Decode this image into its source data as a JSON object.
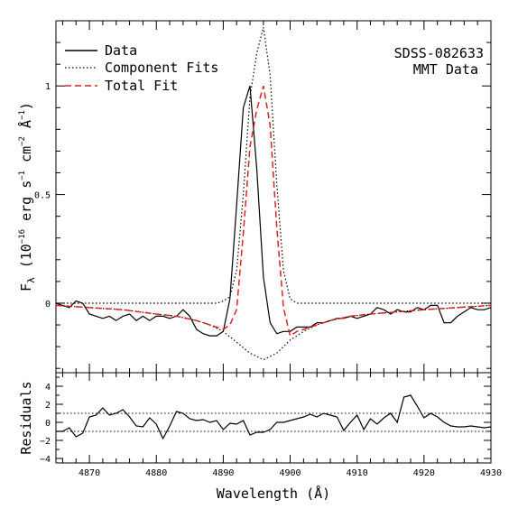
{
  "chart_data": [
    {
      "type": "line",
      "panel": "main",
      "ylabel": "F_λ (10^-16 erg s^-1 cm^-2 Å^-1)",
      "ylabel_parts": {
        "main": "F",
        "sub": "λ",
        "unit_open": "(10",
        "exp1": "−16",
        "mid1": " erg s",
        "exp2": "−1",
        "mid2": " cm",
        "exp3": "−2",
        "mid3": " Å",
        "exp4": "−1",
        "unit_close": ")"
      },
      "xlim": [
        4865,
        4930
      ],
      "ylim": [
        -0.32,
        1.3
      ],
      "yticks_major": [
        0,
        0.5,
        1
      ],
      "ytick_labels": [
        "0",
        "0.5",
        "1"
      ],
      "annotation": [
        "SDSS-082633",
        "MMT Data"
      ],
      "legend": [
        {
          "label": "Data",
          "style": "solid",
          "color": "#000000"
        },
        {
          "label": "Component Fits",
          "style": "dotted",
          "color": "#000000"
        },
        {
          "label": "Total Fit",
          "style": "dashed",
          "color": "#e02020"
        }
      ],
      "series": [
        {
          "name": "Data",
          "style": "solid",
          "color": "#000000",
          "x": [
            4865,
            4866,
            4867,
            4868,
            4869,
            4870,
            4871,
            4872,
            4873,
            4874,
            4875,
            4876,
            4877,
            4878,
            4879,
            4880,
            4881,
            4882,
            4883,
            4884,
            4885,
            4886,
            4887,
            4888,
            4889,
            4890,
            4891,
            4892,
            4893,
            4894,
            4895,
            4896,
            4897,
            4898,
            4899,
            4900,
            4901,
            4902,
            4903,
            4904,
            4905,
            4906,
            4907,
            4908,
            4909,
            4910,
            4911,
            4912,
            4913,
            4914,
            4915,
            4916,
            4917,
            4918,
            4919,
            4920,
            4921,
            4922,
            4923,
            4924,
            4925,
            4926,
            4927,
            4928,
            4929,
            4930
          ],
          "values": [
            0.0,
            -0.01,
            -0.02,
            0.01,
            0.0,
            -0.05,
            -0.06,
            -0.07,
            -0.06,
            -0.08,
            -0.06,
            -0.05,
            -0.08,
            -0.06,
            -0.08,
            -0.06,
            -0.06,
            -0.07,
            -0.06,
            -0.03,
            -0.06,
            -0.12,
            -0.14,
            -0.15,
            -0.15,
            -0.13,
            0.02,
            0.45,
            0.9,
            1.0,
            0.62,
            0.12,
            -0.09,
            -0.14,
            -0.13,
            -0.13,
            -0.11,
            -0.11,
            -0.11,
            -0.09,
            -0.09,
            -0.08,
            -0.07,
            -0.07,
            -0.06,
            -0.07,
            -0.06,
            -0.05,
            -0.02,
            -0.03,
            -0.05,
            -0.03,
            -0.04,
            -0.04,
            -0.02,
            -0.03,
            -0.01,
            -0.01,
            -0.09,
            -0.09,
            -0.06,
            -0.04,
            -0.02,
            -0.03,
            -0.03,
            -0.02
          ]
        },
        {
          "name": "Component Fits (narrow)",
          "style": "dotted",
          "color": "#000000",
          "x": [
            4865,
            4889,
            4890,
            4891,
            4892,
            4893,
            4894,
            4895,
            4896,
            4897,
            4898,
            4899,
            4900,
            4901,
            4930
          ],
          "values": [
            0.0,
            0.0,
            0.01,
            0.03,
            0.15,
            0.5,
            0.95,
            1.15,
            1.27,
            1.05,
            0.55,
            0.15,
            0.02,
            0.0,
            0.0
          ]
        },
        {
          "name": "Component Fits (broad)",
          "style": "dotted",
          "color": "#000000",
          "x": [
            4865,
            4870,
            4875,
            4880,
            4883,
            4886,
            4888,
            4890,
            4892,
            4894,
            4896,
            4898,
            4900,
            4902,
            4904,
            4906,
            4909,
            4912,
            4916,
            4920,
            4925,
            4930
          ],
          "values": [
            -0.01,
            -0.02,
            -0.03,
            -0.05,
            -0.06,
            -0.08,
            -0.1,
            -0.13,
            -0.18,
            -0.23,
            -0.26,
            -0.23,
            -0.17,
            -0.13,
            -0.1,
            -0.08,
            -0.06,
            -0.05,
            -0.04,
            -0.03,
            -0.02,
            -0.01
          ]
        },
        {
          "name": "Total Fit",
          "style": "dashed",
          "color": "#e02020",
          "x": [
            4865,
            4870,
            4875,
            4880,
            4883,
            4886,
            4888,
            4890,
            4891,
            4892,
            4893,
            4894,
            4895,
            4896,
            4897,
            4898,
            4899,
            4900,
            4901,
            4902,
            4904,
            4906,
            4909,
            4912,
            4916,
            4920,
            4925,
            4930
          ],
          "values": [
            -0.01,
            -0.02,
            -0.03,
            -0.05,
            -0.06,
            -0.08,
            -0.1,
            -0.12,
            -0.1,
            -0.03,
            0.32,
            0.72,
            0.89,
            1.0,
            0.82,
            0.35,
            -0.02,
            -0.15,
            -0.13,
            -0.12,
            -0.1,
            -0.08,
            -0.06,
            -0.05,
            -0.04,
            -0.03,
            -0.02,
            -0.01
          ]
        }
      ]
    },
    {
      "type": "line",
      "panel": "residuals",
      "ylabel": "Residuals",
      "xlabel": "Wavelength (Å)",
      "xlim": [
        4865,
        4930
      ],
      "ylim": [
        -4.5,
        5.5
      ],
      "xticks_major": [
        4870,
        4880,
        4890,
        4900,
        4910,
        4920,
        4930
      ],
      "xtick_labels": [
        "4870",
        "4880",
        "4890",
        "4900",
        "4910",
        "4920",
        "4930"
      ],
      "yticks_major": [
        -4,
        -2,
        0,
        2,
        4
      ],
      "ytick_labels": [
        "−4",
        "−2",
        "0",
        "2",
        "4"
      ],
      "reference_lines": [
        1,
        -1
      ],
      "series": [
        {
          "name": "Residuals",
          "style": "solid",
          "color": "#000000",
          "x": [
            4865,
            4866,
            4867,
            4868,
            4869,
            4870,
            4871,
            4872,
            4873,
            4874,
            4875,
            4876,
            4877,
            4878,
            4879,
            4880,
            4881,
            4882,
            4883,
            4884,
            4885,
            4886,
            4887,
            4888,
            4889,
            4890,
            4891,
            4892,
            4893,
            4894,
            4895,
            4896,
            4897,
            4898,
            4899,
            4900,
            4901,
            4902,
            4903,
            4904,
            4905,
            4906,
            4907,
            4908,
            4909,
            4910,
            4911,
            4912,
            4913,
            4914,
            4915,
            4916,
            4917,
            4918,
            4919,
            4920,
            4921,
            4922,
            4923,
            4924,
            4925,
            4926,
            4927,
            4928,
            4929,
            4930
          ],
          "values": [
            -1.0,
            -1.0,
            -0.6,
            -1.6,
            -1.2,
            0.6,
            0.8,
            1.6,
            0.8,
            1.0,
            1.4,
            0.6,
            -0.4,
            -0.5,
            0.5,
            -0.2,
            -1.8,
            -0.4,
            1.2,
            1.0,
            0.4,
            0.2,
            0.3,
            0.0,
            0.2,
            -0.8,
            -0.1,
            -0.2,
            0.2,
            -1.4,
            -1.1,
            -1.1,
            -0.8,
            0.0,
            0.0,
            0.2,
            0.4,
            0.6,
            0.9,
            0.6,
            1.0,
            0.8,
            0.6,
            -0.9,
            0.0,
            0.8,
            -0.8,
            0.4,
            -0.2,
            0.5,
            1.0,
            0.0,
            2.8,
            3.0,
            1.8,
            0.5,
            1.0,
            0.6,
            0.0,
            -0.4,
            -0.5,
            -0.5,
            -0.4,
            -0.5,
            -0.6,
            -0.5
          ]
        }
      ]
    }
  ]
}
